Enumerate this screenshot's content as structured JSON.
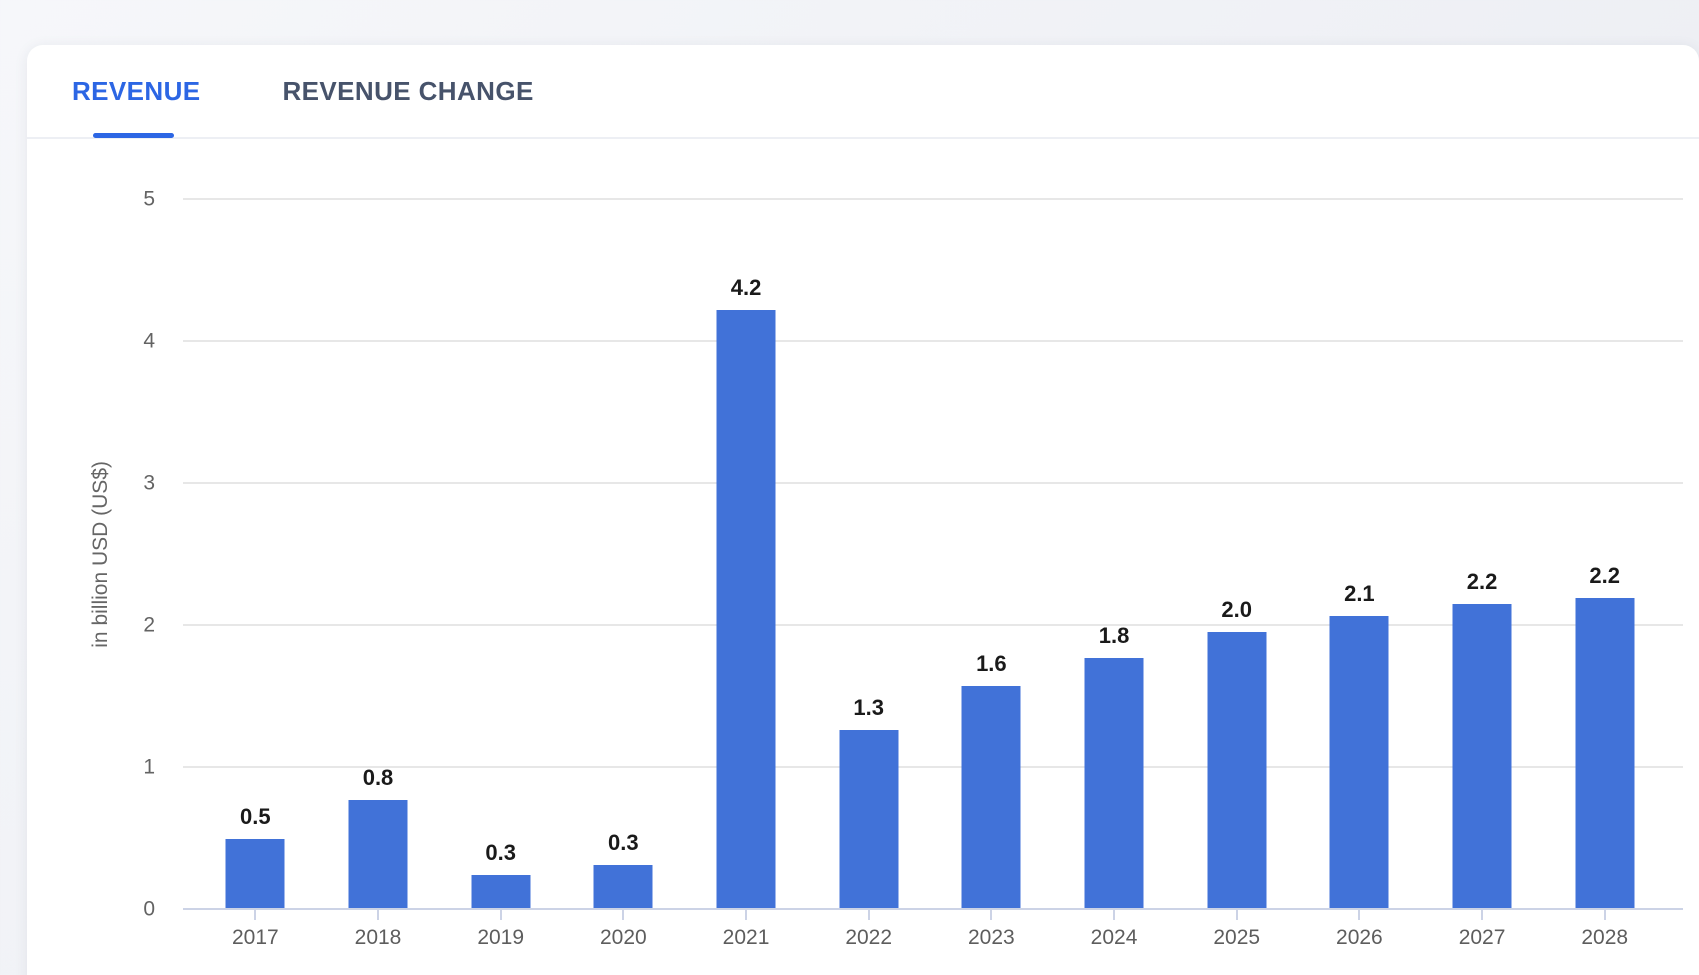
{
  "page": {
    "background_color": "#eceef3",
    "card_background": "#ffffff"
  },
  "tabs": {
    "items": [
      {
        "label": "REVENUE",
        "active": true
      },
      {
        "label": "REVENUE CHANGE",
        "active": false
      }
    ],
    "active_color": "#2c66e4",
    "inactive_color": "#47536b"
  },
  "chart_data": {
    "type": "bar",
    "title": "",
    "xlabel": "",
    "ylabel": "in billion USD (US$)",
    "categories": [
      "2017",
      "2018",
      "2019",
      "2020",
      "2021",
      "2022",
      "2023",
      "2024",
      "2025",
      "2026",
      "2027",
      "2028"
    ],
    "values": [
      0.5,
      0.8,
      0.3,
      0.3,
      4.2,
      1.3,
      1.6,
      1.8,
      2.0,
      2.1,
      2.2,
      2.2
    ],
    "value_labels": [
      "0.5",
      "0.8",
      "0.3",
      "0.3",
      "4.2",
      "1.3",
      "1.6",
      "1.8",
      "2.0",
      "2.1",
      "2.2",
      "2.2"
    ],
    "bar_heights_estimate": [
      0.49,
      0.77,
      0.24,
      0.31,
      4.22,
      1.26,
      1.57,
      1.77,
      1.95,
      2.06,
      2.15,
      2.19
    ],
    "yticks": [
      0,
      1,
      2,
      3,
      4,
      5
    ],
    "ylim": [
      0,
      5
    ],
    "grid": true,
    "legend": false,
    "bar_color": "#4172d8",
    "gridline_color": "#e7e7e7",
    "axis_line_color": "#ccd3e6",
    "tick_label_color": "#636363",
    "value_label_color": "#1a1a1a"
  }
}
